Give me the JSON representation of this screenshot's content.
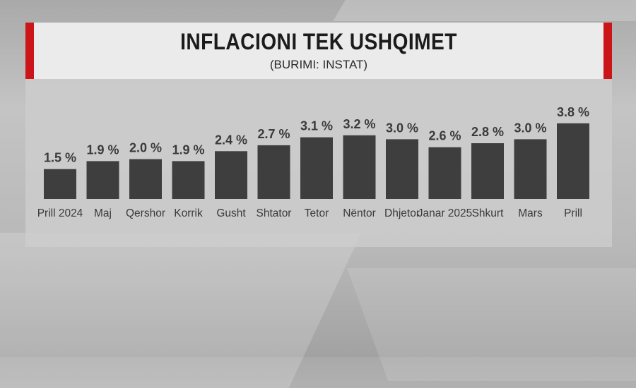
{
  "header": {
    "title": "INFLACIONI TEK USHQIMET",
    "subtitle": "(BURIMI: INSTAT)"
  },
  "colors": {
    "accent": "#cc1518",
    "bar": "#3e3e3e",
    "label": "#3a3a3a"
  },
  "chart_data": {
    "type": "bar",
    "title": "INFLACIONI TEK USHQIMET",
    "subtitle": "(BURIMI: INSTAT)",
    "xlabel": "",
    "ylabel": "",
    "grid": false,
    "legend": "none",
    "unit": "%",
    "ylim": [
      0,
      4
    ],
    "categories": [
      "Prill 2024",
      "Maj",
      "Qershor",
      "Korrik",
      "Gusht",
      "Shtator",
      "Tetor",
      "Nëntor",
      "Dhjetor",
      "Janar 2025",
      "Shkurt",
      "Mars",
      "Prill"
    ],
    "values": [
      1.5,
      1.9,
      2.0,
      1.9,
      2.4,
      2.7,
      3.1,
      3.2,
      3.0,
      2.6,
      2.8,
      3.0,
      3.8
    ],
    "data_labels": [
      "1.5 %",
      "1.9 %",
      "2.0 %",
      "1.9 %",
      "2.4 %",
      "2.7 %",
      "3.1 %",
      "3.2 %",
      "3.0 %",
      "2.6 %",
      "2.8 %",
      "3.0 %",
      "3.8 %"
    ]
  }
}
